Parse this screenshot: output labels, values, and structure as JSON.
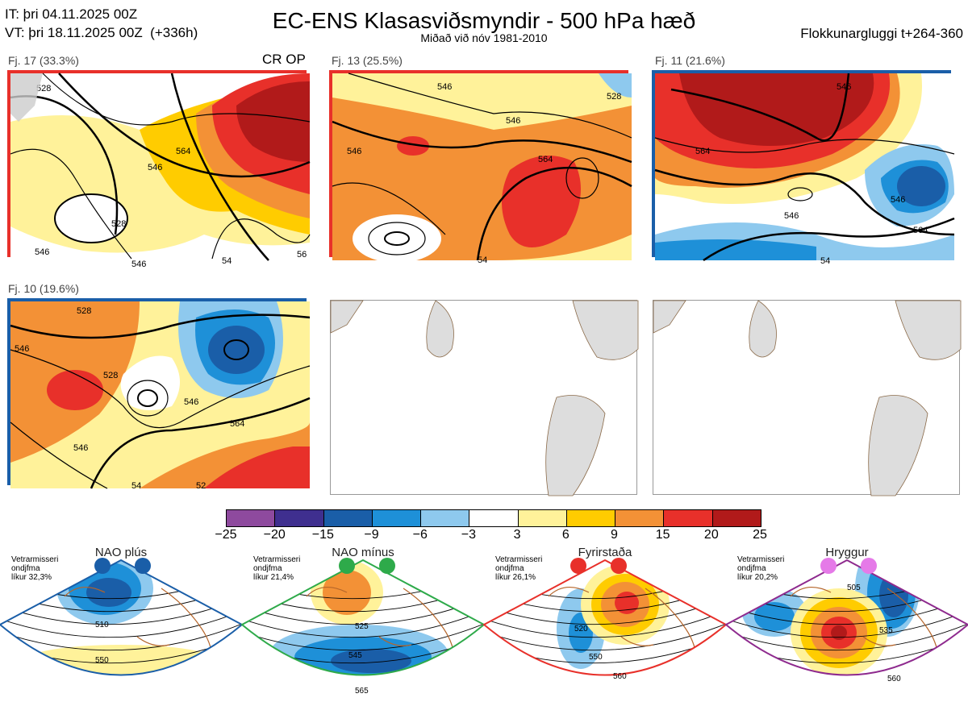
{
  "header": {
    "init_time": "IT: þri 04.11.2025 00Z",
    "valid_time": "VT: þri 18.11.2025 00Z  (+336h)",
    "title": "EC-ENS Klasasviðsmyndir - 500 hPa hæð",
    "subtitle": "Miðað við nóv 1981-2010",
    "cluster_window": "Flokkunargluggi t+264-360"
  },
  "panels": [
    {
      "label": "Fj. 17 (33.3%)",
      "tag": "CR OP",
      "border": "#e8302a",
      "contours": [
        "528",
        "546",
        "528",
        "546",
        "546",
        "564",
        "56",
        "54"
      ]
    },
    {
      "label": "Fj. 13 (25.5%)",
      "tag": "",
      "border": "#e8302a",
      "contours": [
        "546",
        "546",
        "528",
        "546",
        "564",
        "54"
      ]
    },
    {
      "label": "Fj. 11 (21.6%)",
      "tag": "",
      "border": "#1a5ea8",
      "contours": [
        "546",
        "564",
        "546",
        "546",
        "564",
        "54"
      ]
    },
    {
      "label": "Fj. 10 (19.6%)",
      "tag": "",
      "border": "#1a5ea8",
      "contours": [
        "528",
        "546",
        "528",
        "546",
        "564",
        "546",
        "54",
        "52"
      ]
    }
  ],
  "colorbar": {
    "colors": [
      "#8e4a9e",
      "#3f2f8f",
      "#1a5ea8",
      "#1e90d8",
      "#8ec9ee",
      "#ffffff",
      "#fff29a",
      "#ffcc00",
      "#f39136",
      "#e8302a",
      "#b11a1a"
    ],
    "labels": [
      "−25",
      "−20",
      "−15",
      "−9",
      "−6",
      "−3",
      "3",
      "6",
      "9",
      "15",
      "20",
      "25"
    ]
  },
  "regimes": [
    {
      "name": "NAO plús",
      "stat_line1": "Vetrarmisseri",
      "stat_line2": "ondjfma",
      "stat_line3": "líkur 32,3%",
      "color": "#1a5ea8",
      "dot": "#1a5ea8",
      "contours": [
        "510",
        "550"
      ]
    },
    {
      "name": "NAO mínus",
      "stat_line1": "Vetrarmisseri",
      "stat_line2": "ondjfma",
      "stat_line3": "líkur 21,4%",
      "color": "#2eaa4a",
      "dot": "#2eaa4a",
      "contours": [
        "525",
        "545",
        "565"
      ]
    },
    {
      "name": "Fyrirstaða",
      "stat_line1": "Vetrarmisseri",
      "stat_line2": "ondjfma",
      "stat_line3": "líkur 26,1%",
      "color": "#e8302a",
      "dot": "#e8302a",
      "contours": [
        "520",
        "550",
        "560"
      ]
    },
    {
      "name": "Hryggur",
      "stat_line1": "Vetrarmisseri",
      "stat_line2": "ondjfma",
      "stat_line3": "líkur 20,2%",
      "color": "#8e2a8e",
      "dot": "#e57ae8",
      "contours": [
        "505",
        "535",
        "560"
      ]
    }
  ],
  "icons": {
    "map": "map-icon"
  }
}
